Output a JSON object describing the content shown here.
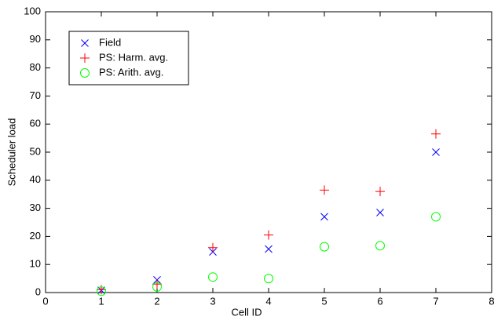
{
  "chart_data": {
    "type": "scatter",
    "xlabel": "Cell ID",
    "ylabel": "Scheduler load",
    "x": [
      1,
      2,
      3,
      4,
      5,
      6,
      7
    ],
    "series": [
      {
        "name": "Field",
        "color": "#0000ff",
        "marker": "x",
        "values": [
          0.8,
          4.5,
          14.5,
          15.5,
          27,
          28.5,
          50
        ]
      },
      {
        "name": "PS: Harm. avg.",
        "color": "#ff0000",
        "marker": "+",
        "values": [
          1,
          3,
          16,
          20.5,
          36.5,
          36,
          56.5
        ]
      },
      {
        "name": "PS: Arith. avg.",
        "color": "#00ff00",
        "marker": "o",
        "values": [
          0.5,
          2,
          5.5,
          5,
          16.3,
          16.7,
          27
        ]
      }
    ],
    "xlim": [
      0,
      8
    ],
    "xticks": [
      0,
      1,
      2,
      3,
      4,
      5,
      6,
      7,
      8
    ],
    "ylim": [
      0,
      100
    ],
    "yticks": [
      0,
      10,
      20,
      30,
      40,
      50,
      60,
      70,
      80,
      90,
      100
    ],
    "legend": "upper-left"
  }
}
